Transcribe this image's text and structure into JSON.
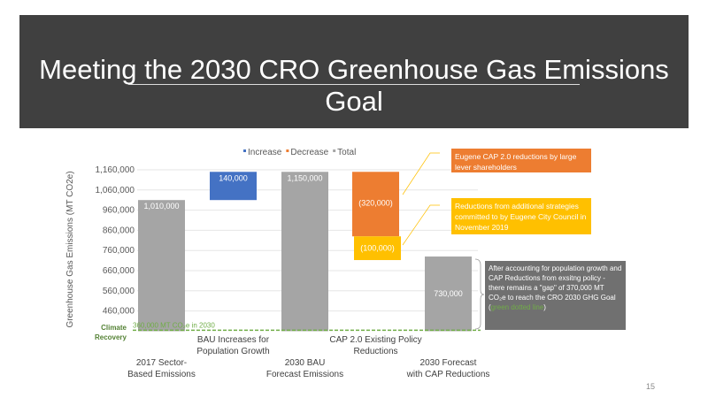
{
  "slide": {
    "title": "Meeting the 2030 CRO Greenhouse Gas Emissions Goal",
    "page_number": "15"
  },
  "callouts": {
    "orange": "Eugene CAP 2.0 reductions by large lever shareholders",
    "yellow": "Reductions from additional strategies committed to by Eugene City Council in November 2019",
    "gap_pre": "After accounting for population growth and CAP Reductions from exsitng policy - there remains a \"gap\" of 370,000 MT CO₂e to reach the CRO 2030 GHG Goal (",
    "gap_link": "green dotted line",
    "gap_post": ")"
  },
  "chart_data": {
    "type": "bar",
    "subtype": "waterfall",
    "ylabel": "Greenhouse Gas Emissions (MT CO2e)",
    "ylim": [
      360000,
      1180000
    ],
    "yticks": [
      460000,
      560000,
      660000,
      760000,
      860000,
      960000,
      1060000,
      1160000
    ],
    "ytick_labels": [
      "460,000",
      "560,000",
      "660,000",
      "760,000",
      "860,000",
      "960,000",
      "1,060,000",
      "1,160,000"
    ],
    "legend": [
      {
        "name": "Increase",
        "color": "#4472c4"
      },
      {
        "name": "Decrease",
        "color": "#ed7d31"
      },
      {
        "name": "Total",
        "color": "#a5a5a5"
      }
    ],
    "legend_position": "top",
    "categories": [
      "2017 Sector-Based Emissions",
      "BAU Increases for Population Growth",
      "2030 BAU Forecast Emissions",
      "CAP 2.0 Existing Policy Reductions",
      "2030 Forecast with CAP Reductions"
    ],
    "bars": [
      {
        "cat": 0,
        "kind": "Total",
        "base": 360000,
        "top": 1010000,
        "label": "1,010,000",
        "color": "#a5a5a5"
      },
      {
        "cat": 1,
        "kind": "Increase",
        "base": 1010000,
        "top": 1150000,
        "label": "140,000",
        "color": "#4472c4"
      },
      {
        "cat": 2,
        "kind": "Total",
        "base": 360000,
        "top": 1150000,
        "label": "1,150,000",
        "color": "#a5a5a5"
      },
      {
        "cat": 3,
        "kind": "Decrease",
        "base": 830000,
        "top": 1150000,
        "label": "(320,000)",
        "color": "#ed7d31"
      },
      {
        "cat": 3,
        "kind": "Decrease",
        "base": 730000,
        "top": 830000,
        "label": "(100,000)",
        "color": "#ffc000"
      },
      {
        "cat": 4,
        "kind": "Total",
        "base": 360000,
        "top": 730000,
        "label": "730,000",
        "color": "#a5a5a5"
      }
    ],
    "goal_line": {
      "value": 360000,
      "label": "Climate Recovery",
      "annotation": "360,000 MT CO₂e in 2030",
      "color": "#70ad47"
    }
  }
}
